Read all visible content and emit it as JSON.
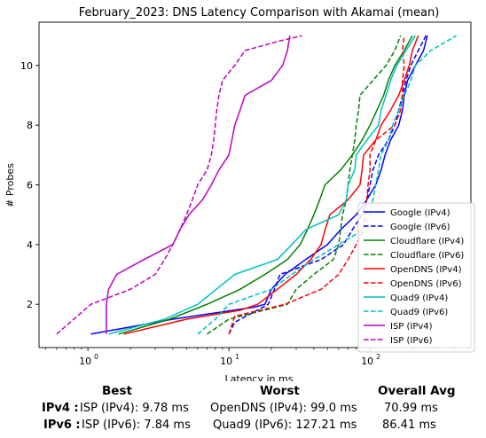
{
  "chart_data": {
    "type": "line",
    "title": "February_2023: DNS Latency Comparison with Akamai (mean)",
    "xlabel": "Latency in ms",
    "ylabel": "# Probes",
    "xscale": "log",
    "xlim": [
      0.45,
      520
    ],
    "ylim": [
      0.55,
      11.45
    ],
    "xticks": [
      {
        "value": 1,
        "label": "10",
        "exp": "0"
      },
      {
        "value": 10,
        "label": "10",
        "exp": "1"
      },
      {
        "value": 100,
        "label": "10",
        "exp": "2"
      }
    ],
    "yticks": [
      2,
      4,
      6,
      8,
      10
    ],
    "legend_position": "lower right",
    "series": [
      {
        "name": "Google (IPv4)",
        "color": "#0000ff",
        "dash": false,
        "points": [
          [
            1.05,
            1
          ],
          [
            4,
            1.5
          ],
          [
            15,
            1.9
          ],
          [
            18,
            2
          ],
          [
            20,
            2.5
          ],
          [
            25,
            3
          ],
          [
            35,
            3.5
          ],
          [
            50,
            4
          ],
          [
            62,
            4.5
          ],
          [
            80,
            5
          ],
          [
            95,
            5.5
          ],
          [
            110,
            6
          ],
          [
            120,
            6.5
          ],
          [
            128,
            7
          ],
          [
            140,
            7.5
          ],
          [
            160,
            8
          ],
          [
            170,
            8.5
          ],
          [
            175,
            9
          ],
          [
            185,
            9.5
          ],
          [
            210,
            10
          ],
          [
            240,
            10.5
          ],
          [
            255,
            11
          ]
        ]
      },
      {
        "name": "Google (IPv6)",
        "color": "#0000ff",
        "dash": true,
        "points": [
          [
            10,
            1
          ],
          [
            11,
            1.4
          ],
          [
            19,
            2
          ],
          [
            21,
            2.5
          ],
          [
            23,
            3
          ],
          [
            45,
            3.5
          ],
          [
            65,
            4
          ],
          [
            75,
            4.5
          ],
          [
            88,
            5
          ],
          [
            95,
            5.5
          ],
          [
            100,
            6
          ],
          [
            105,
            6.5
          ],
          [
            115,
            7
          ],
          [
            135,
            7.5
          ],
          [
            150,
            8
          ],
          [
            160,
            8.5
          ],
          [
            170,
            9
          ],
          [
            180,
            9.5
          ],
          [
            195,
            10
          ],
          [
            220,
            10.5
          ],
          [
            250,
            11
          ]
        ]
      },
      {
        "name": "Cloudflare (IPv4)",
        "color": "#008000",
        "dash": false,
        "points": [
          [
            1.65,
            1
          ],
          [
            3.8,
            1.5
          ],
          [
            7,
            2
          ],
          [
            12,
            2.5
          ],
          [
            18,
            3
          ],
          [
            26,
            3.5
          ],
          [
            32,
            4
          ],
          [
            36,
            4.5
          ],
          [
            40,
            5
          ],
          [
            44,
            5.5
          ],
          [
            48,
            6
          ],
          [
            62,
            6.5
          ],
          [
            75,
            7
          ],
          [
            88,
            7.5
          ],
          [
            100,
            8
          ],
          [
            112,
            8.5
          ],
          [
            125,
            9
          ],
          [
            135,
            9.5
          ],
          [
            150,
            10
          ],
          [
            175,
            10.5
          ],
          [
            200,
            11
          ]
        ]
      },
      {
        "name": "Cloudflare (IPv6)",
        "color": "#008000",
        "dash": true,
        "points": [
          [
            7,
            1
          ],
          [
            10,
            1.5
          ],
          [
            26,
            2
          ],
          [
            30,
            2.5
          ],
          [
            40,
            3
          ],
          [
            55,
            3.5
          ],
          [
            60,
            4
          ],
          [
            62,
            4.5
          ],
          [
            64,
            5
          ],
          [
            68,
            5.5
          ],
          [
            70,
            6
          ],
          [
            72,
            6.5
          ],
          [
            75,
            7
          ],
          [
            78,
            7.5
          ],
          [
            80,
            8
          ],
          [
            83,
            8.5
          ],
          [
            85,
            9
          ],
          [
            105,
            9.5
          ],
          [
            130,
            10
          ],
          [
            150,
            10.5
          ],
          [
            165,
            11
          ]
        ]
      },
      {
        "name": "OpenDNS (IPv4)",
        "color": "#ff0000",
        "dash": false,
        "points": [
          [
            1.8,
            1
          ],
          [
            5,
            1.5
          ],
          [
            12,
            1.8
          ],
          [
            16,
            2
          ],
          [
            22,
            2.5
          ],
          [
            30,
            3
          ],
          [
            38,
            3.5
          ],
          [
            45,
            4
          ],
          [
            48,
            4.5
          ],
          [
            52,
            5
          ],
          [
            70,
            5.5
          ],
          [
            85,
            6
          ],
          [
            88,
            6.5
          ],
          [
            90,
            7
          ],
          [
            110,
            7.5
          ],
          [
            120,
            8
          ],
          [
            140,
            8.5
          ],
          [
            160,
            9
          ],
          [
            175,
            9.5
          ],
          [
            190,
            10
          ],
          [
            200,
            10.5
          ],
          [
            220,
            11
          ]
        ]
      },
      {
        "name": "OpenDNS (IPv6)",
        "color": "#ff0000",
        "dash": true,
        "points": [
          [
            10,
            1
          ],
          [
            11,
            1.6
          ],
          [
            25,
            2
          ],
          [
            45,
            2.5
          ],
          [
            60,
            3
          ],
          [
            70,
            3.5
          ],
          [
            80,
            4
          ],
          [
            90,
            4.5
          ],
          [
            92,
            5
          ],
          [
            95,
            5.5
          ],
          [
            97,
            6
          ],
          [
            100,
            6.5
          ],
          [
            100,
            7
          ],
          [
            110,
            7.5
          ],
          [
            150,
            8
          ],
          [
            165,
            8.5
          ],
          [
            170,
            9
          ],
          [
            170,
            9.5
          ],
          [
            175,
            10
          ],
          [
            170,
            10.5
          ],
          [
            175,
            11
          ]
        ]
      },
      {
        "name": "Quad9 (IPv4)",
        "color": "#00bfbf",
        "dash": false,
        "points": [
          [
            1.4,
            1
          ],
          [
            3.5,
            1.5
          ],
          [
            6,
            2
          ],
          [
            11,
            3
          ],
          [
            22,
            3.5
          ],
          [
            28,
            4
          ],
          [
            35,
            4.5
          ],
          [
            60,
            5
          ],
          [
            68,
            5.5
          ],
          [
            70,
            6
          ],
          [
            78,
            6.5
          ],
          [
            80,
            7
          ],
          [
            95,
            7.5
          ],
          [
            115,
            8
          ],
          [
            120,
            8.5
          ],
          [
            130,
            9
          ],
          [
            140,
            9.5
          ],
          [
            155,
            10
          ],
          [
            180,
            10.5
          ],
          [
            210,
            11
          ]
        ]
      },
      {
        "name": "Quad9 (IPv6)",
        "color": "#00bfbf",
        "dash": true,
        "points": [
          [
            6,
            1
          ],
          [
            8,
            1.5
          ],
          [
            10,
            2
          ],
          [
            20,
            2.5
          ],
          [
            28,
            3
          ],
          [
            40,
            3.5
          ],
          [
            60,
            4
          ],
          [
            90,
            4.5
          ],
          [
            100,
            5
          ],
          [
            105,
            5.5
          ],
          [
            110,
            6
          ],
          [
            115,
            6.5
          ],
          [
            120,
            7
          ],
          [
            135,
            7.5
          ],
          [
            145,
            8
          ],
          [
            160,
            8.5
          ],
          [
            175,
            9
          ],
          [
            195,
            9.5
          ],
          [
            210,
            10
          ],
          [
            270,
            10.5
          ],
          [
            410,
            11
          ]
        ]
      },
      {
        "name": "ISP (IPv4)",
        "color": "#bf00bf",
        "dash": false,
        "points": [
          [
            1.35,
            1
          ],
          [
            1.35,
            2
          ],
          [
            1.4,
            2.5
          ],
          [
            1.6,
            3
          ],
          [
            2.5,
            3.5
          ],
          [
            4,
            4
          ],
          [
            4.5,
            4.5
          ],
          [
            5.2,
            5
          ],
          [
            6.5,
            5.5
          ],
          [
            7.5,
            6
          ],
          [
            8.5,
            6.5
          ],
          [
            10,
            7
          ],
          [
            10.5,
            7.5
          ],
          [
            11,
            8
          ],
          [
            12,
            8.5
          ],
          [
            13,
            9
          ],
          [
            20,
            9.5
          ],
          [
            24,
            10
          ],
          [
            26,
            10.5
          ],
          [
            27,
            11
          ]
        ]
      },
      {
        "name": "ISP (IPv6)",
        "color": "#bf00bf",
        "dash": true,
        "points": [
          [
            0.6,
            1
          ],
          [
            1.05,
            2
          ],
          [
            2,
            2.5
          ],
          [
            3,
            3
          ],
          [
            3.5,
            3.5
          ],
          [
            4,
            4
          ],
          [
            4.5,
            4.5
          ],
          [
            5,
            5
          ],
          [
            5.5,
            5.5
          ],
          [
            6,
            6
          ],
          [
            7,
            6.5
          ],
          [
            7.5,
            7
          ],
          [
            7.8,
            7.5
          ],
          [
            8,
            8
          ],
          [
            8.2,
            8.5
          ],
          [
            8.5,
            9
          ],
          [
            9,
            9.5
          ],
          [
            11,
            10
          ],
          [
            13,
            10.5
          ],
          [
            22,
            10.8
          ],
          [
            33,
            11
          ]
        ]
      }
    ]
  },
  "summary": {
    "headers": {
      "best": "Best",
      "worst": "Worst",
      "avg": "Overall Avg"
    },
    "rows": [
      {
        "label": "IPv4 :",
        "best": "ISP (IPv4): 9.78 ms",
        "worst": "OpenDNS (IPv4): 99.0 ms",
        "avg": "70.99 ms"
      },
      {
        "label": "IPv6 :",
        "best": "ISP (IPv6): 7.84 ms",
        "worst": "Quad9 (IPv6): 127.21 ms",
        "avg": "86.41 ms"
      }
    ]
  }
}
